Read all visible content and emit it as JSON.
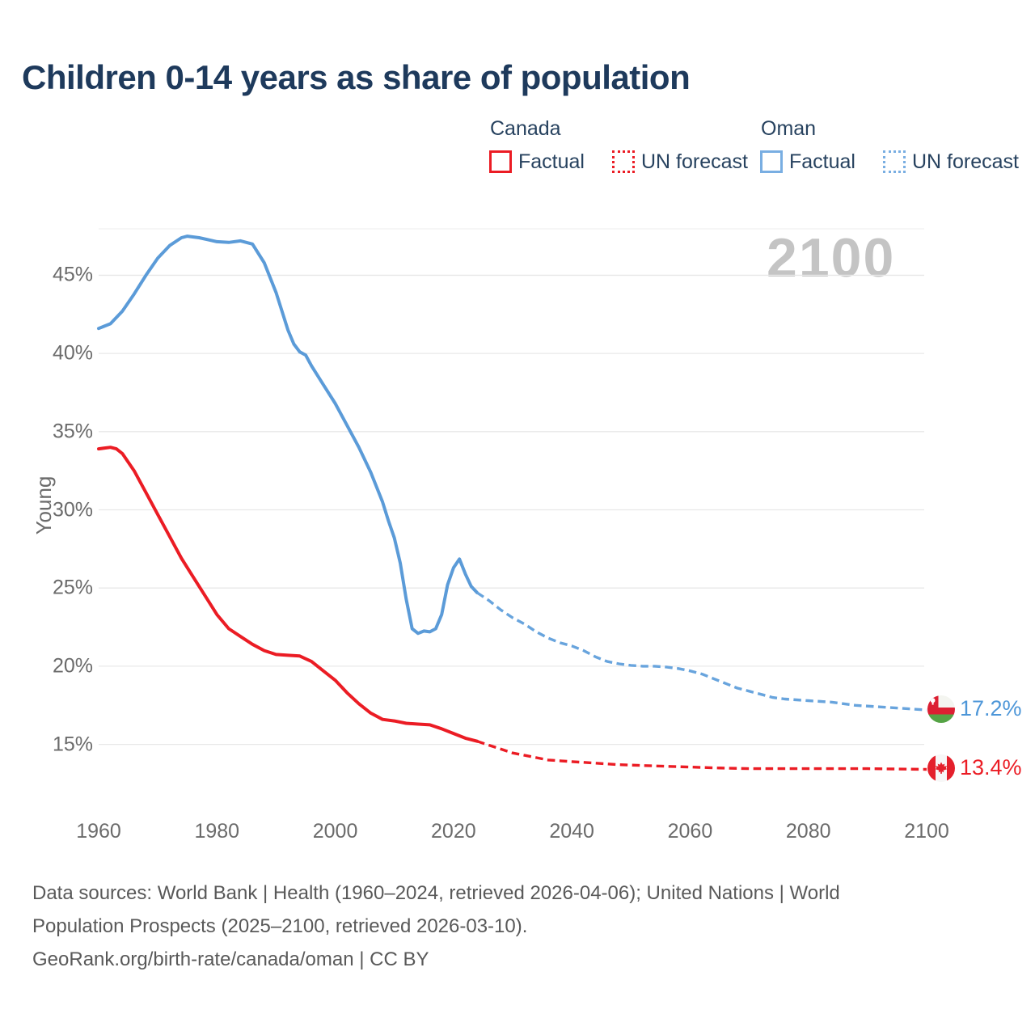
{
  "title": "Children 0-14 years as share of population",
  "watermark": "2100",
  "legend": {
    "canada": {
      "label": "Canada",
      "factual": "Factual",
      "forecast": "UN forecast"
    },
    "oman": {
      "label": "Oman",
      "factual": "Factual",
      "forecast": "UN forecast"
    }
  },
  "end_labels": {
    "oman": "17.2%",
    "canada": "13.4%"
  },
  "footer": {
    "line1": "Data sources: World Bank | Health (1960–2024, retrieved 2026-04-06); United Nations | World",
    "line2": "Population Prospects (2025–2100, retrieved 2026-03-10).",
    "line3": "GeoRank.org/birth-rate/canada/oman | CC BY"
  },
  "colors": {
    "canada": "#EB1C24",
    "oman": "#5B9BD8",
    "oman_forecast": "#68A4DD",
    "title_text": "#1E3A5C",
    "legend_text": "#27425F",
    "tick_text": "#6B6B6B",
    "watermark_text": "#C4C4C4",
    "gridline": "#E8E8E8",
    "footer_text": "#595959",
    "oman_value_text": "#4D96D8",
    "canada_value_text": "#EB1C24"
  },
  "chart_data": {
    "type": "line",
    "title": "Children 0-14 years as share of population",
    "xlabel": "",
    "ylabel": "Young",
    "x_range": [
      1960,
      2100
    ],
    "y_ticks": [
      15,
      20,
      25,
      30,
      35,
      40,
      45
    ],
    "y_tick_suffix": "%",
    "x_ticks": [
      1960,
      1980,
      2000,
      2020,
      2040,
      2060,
      2080,
      2100
    ],
    "grid": true,
    "legend_position": "top-right",
    "series": [
      {
        "name": "Oman Factual",
        "style": "solid",
        "color_key": "oman",
        "points": [
          [
            1960,
            41.6
          ],
          [
            1962,
            41.9
          ],
          [
            1964,
            42.7
          ],
          [
            1966,
            43.8
          ],
          [
            1968,
            45.0
          ],
          [
            1970,
            46.1
          ],
          [
            1972,
            46.9
          ],
          [
            1974,
            47.4
          ],
          [
            1975,
            47.5
          ],
          [
            1977,
            47.4
          ],
          [
            1980,
            47.15
          ],
          [
            1982,
            47.1
          ],
          [
            1984,
            47.2
          ],
          [
            1986,
            47.0
          ],
          [
            1988,
            45.8
          ],
          [
            1990,
            43.9
          ],
          [
            1992,
            41.5
          ],
          [
            1993,
            40.6
          ],
          [
            1994,
            40.1
          ],
          [
            1995,
            39.9
          ],
          [
            1996,
            39.2
          ],
          [
            1998,
            38.0
          ],
          [
            2000,
            36.8
          ],
          [
            2002,
            35.4
          ],
          [
            2004,
            34.0
          ],
          [
            2006,
            32.4
          ],
          [
            2008,
            30.5
          ],
          [
            2009,
            29.3
          ],
          [
            2010,
            28.2
          ],
          [
            2011,
            26.6
          ],
          [
            2012,
            24.3
          ],
          [
            2013,
            22.4
          ],
          [
            2014,
            22.1
          ],
          [
            2015,
            22.25
          ],
          [
            2016,
            22.2
          ],
          [
            2017,
            22.4
          ],
          [
            2018,
            23.3
          ],
          [
            2019,
            25.2
          ],
          [
            2020,
            26.3
          ],
          [
            2021,
            26.85
          ],
          [
            2022,
            25.9
          ],
          [
            2023,
            25.1
          ],
          [
            2024,
            24.7
          ]
        ]
      },
      {
        "name": "Oman UN forecast",
        "style": "dashed",
        "color_key": "oman_forecast",
        "points": [
          [
            2024,
            24.7
          ],
          [
            2026,
            24.2
          ],
          [
            2028,
            23.6
          ],
          [
            2030,
            23.1
          ],
          [
            2032,
            22.7
          ],
          [
            2034,
            22.2
          ],
          [
            2036,
            21.8
          ],
          [
            2038,
            21.5
          ],
          [
            2040,
            21.3
          ],
          [
            2042,
            21.0
          ],
          [
            2044,
            20.6
          ],
          [
            2046,
            20.3
          ],
          [
            2048,
            20.15
          ],
          [
            2050,
            20.05
          ],
          [
            2052,
            20.0
          ],
          [
            2054,
            20.0
          ],
          [
            2056,
            19.95
          ],
          [
            2058,
            19.85
          ],
          [
            2060,
            19.7
          ],
          [
            2062,
            19.5
          ],
          [
            2064,
            19.2
          ],
          [
            2066,
            18.9
          ],
          [
            2068,
            18.6
          ],
          [
            2070,
            18.4
          ],
          [
            2072,
            18.2
          ],
          [
            2074,
            18.0
          ],
          [
            2076,
            17.9
          ],
          [
            2078,
            17.85
          ],
          [
            2080,
            17.8
          ],
          [
            2084,
            17.7
          ],
          [
            2088,
            17.5
          ],
          [
            2092,
            17.4
          ],
          [
            2096,
            17.3
          ],
          [
            2100,
            17.2
          ]
        ]
      },
      {
        "name": "Canada Factual",
        "style": "solid",
        "color_key": "canada",
        "points": [
          [
            1960,
            33.9
          ],
          [
            1962,
            34.0
          ],
          [
            1963,
            33.9
          ],
          [
            1964,
            33.6
          ],
          [
            1966,
            32.5
          ],
          [
            1968,
            31.1
          ],
          [
            1970,
            29.7
          ],
          [
            1972,
            28.3
          ],
          [
            1974,
            26.9
          ],
          [
            1976,
            25.7
          ],
          [
            1978,
            24.5
          ],
          [
            1980,
            23.3
          ],
          [
            1982,
            22.4
          ],
          [
            1984,
            21.9
          ],
          [
            1986,
            21.4
          ],
          [
            1988,
            21.0
          ],
          [
            1990,
            20.75
          ],
          [
            1992,
            20.7
          ],
          [
            1994,
            20.65
          ],
          [
            1996,
            20.3
          ],
          [
            1998,
            19.7
          ],
          [
            2000,
            19.1
          ],
          [
            2002,
            18.3
          ],
          [
            2004,
            17.6
          ],
          [
            2006,
            17.0
          ],
          [
            2008,
            16.6
          ],
          [
            2010,
            16.5
          ],
          [
            2012,
            16.35
          ],
          [
            2014,
            16.3
          ],
          [
            2016,
            16.25
          ],
          [
            2018,
            16.0
          ],
          [
            2020,
            15.7
          ],
          [
            2022,
            15.4
          ],
          [
            2024,
            15.2
          ]
        ]
      },
      {
        "name": "Canada UN forecast",
        "style": "dashed",
        "color_key": "canada",
        "points": [
          [
            2024,
            15.2
          ],
          [
            2026,
            14.95
          ],
          [
            2028,
            14.7
          ],
          [
            2030,
            14.45
          ],
          [
            2032,
            14.3
          ],
          [
            2034,
            14.15
          ],
          [
            2036,
            14.0
          ],
          [
            2038,
            13.95
          ],
          [
            2040,
            13.9
          ],
          [
            2044,
            13.8
          ],
          [
            2048,
            13.7
          ],
          [
            2052,
            13.65
          ],
          [
            2056,
            13.6
          ],
          [
            2060,
            13.55
          ],
          [
            2064,
            13.5
          ],
          [
            2070,
            13.45
          ],
          [
            2080,
            13.45
          ],
          [
            2090,
            13.45
          ],
          [
            2100,
            13.4
          ]
        ]
      }
    ]
  }
}
